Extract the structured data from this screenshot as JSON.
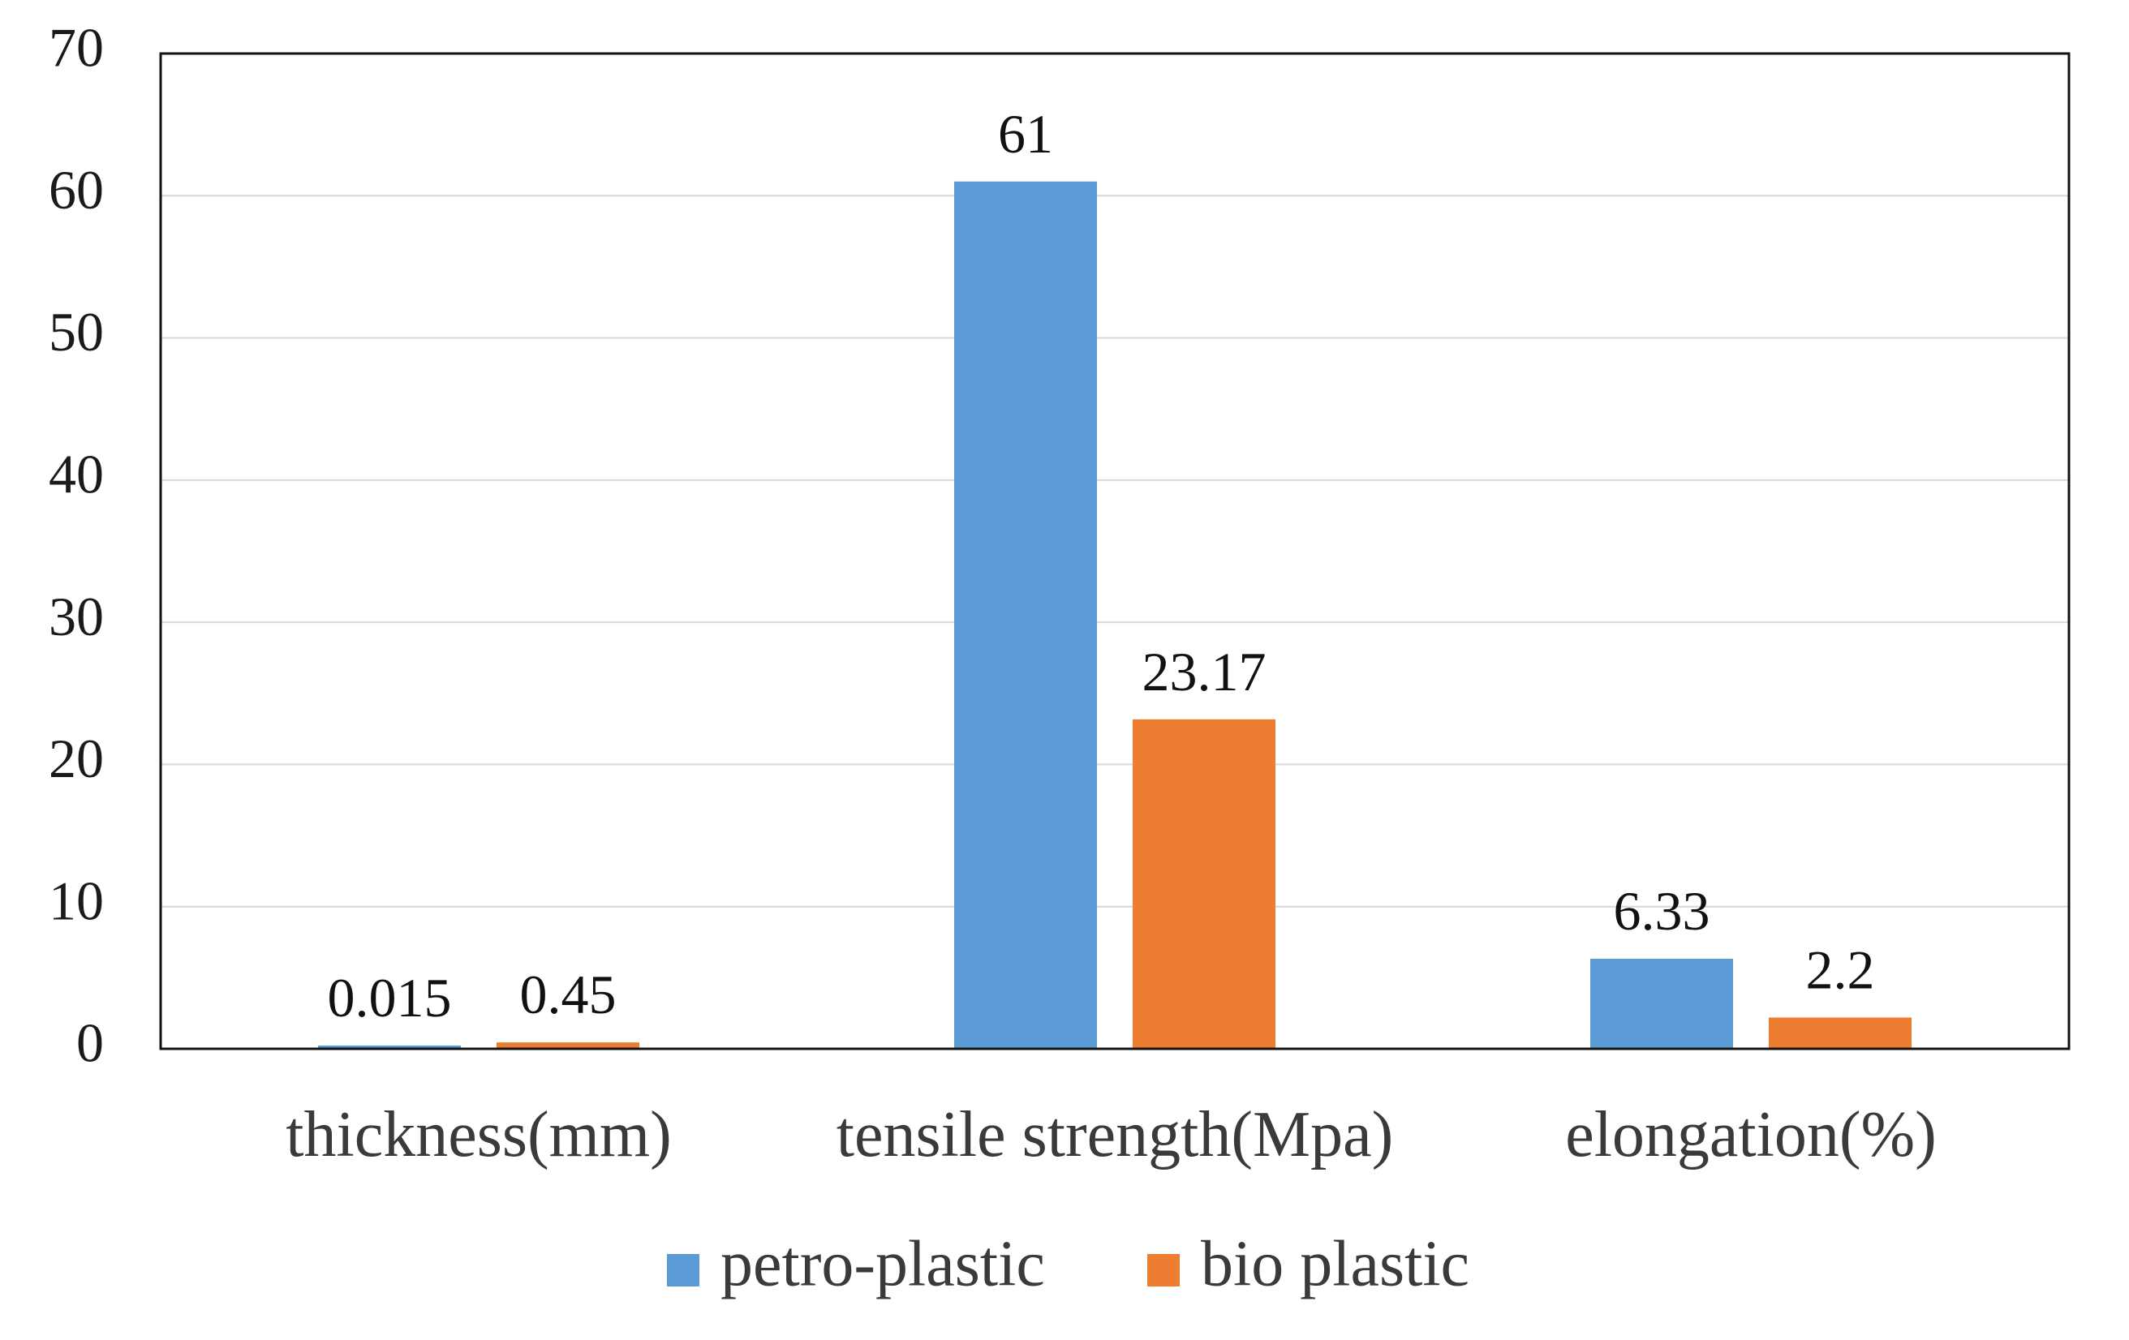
{
  "chart_data": {
    "type": "bar",
    "title": "",
    "xlabel": "",
    "ylabel": "",
    "categories": [
      "thickness(mm)",
      "tensile strength(Mpa)",
      "elongation(%)"
    ],
    "series": [
      {
        "name": "petro-plastic",
        "color": "#5B9BD5",
        "values": [
          0.015,
          61,
          6.33
        ],
        "labels": [
          "0.015",
          "61",
          "6.33"
        ]
      },
      {
        "name": "bio plastic",
        "color": "#ED7D31",
        "values": [
          0.45,
          23.17,
          2.2
        ],
        "labels": [
          "0.45",
          "23.17",
          "2.2"
        ]
      }
    ],
    "ylim": [
      0,
      70
    ],
    "yticks": [
      "0",
      "10",
      "20",
      "30",
      "40",
      "50",
      "60",
      "70"
    ],
    "grid": true,
    "legend_position": "bottom"
  }
}
